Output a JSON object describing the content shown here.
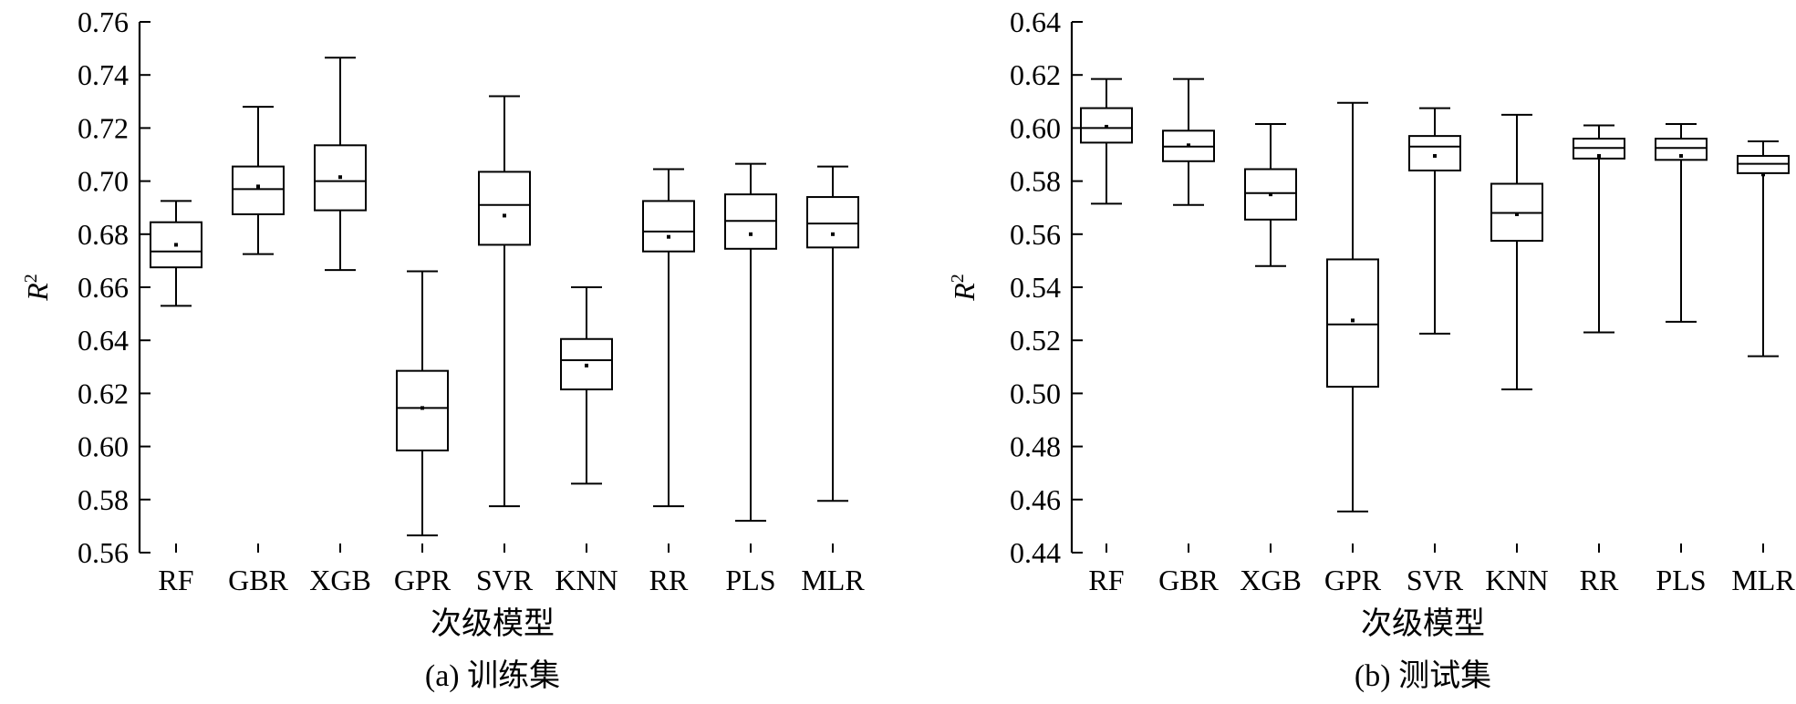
{
  "chart_data": [
    {
      "type": "box",
      "caption": "(a) 训练集",
      "xlabel": "次级模型",
      "ylabel": "R",
      "ylabel_superscript": "2",
      "ylim": [
        0.56,
        0.76
      ],
      "yticks": [
        "0.56",
        "0.58",
        "0.60",
        "0.62",
        "0.64",
        "0.66",
        "0.68",
        "0.70",
        "0.72",
        "0.74",
        "0.76"
      ],
      "categories": [
        "RF",
        "GBR",
        "XGB",
        "GPR",
        "SVR",
        "KNN",
        "RR",
        "PLS",
        "MLR"
      ],
      "boxes": [
        {
          "min": 0.653,
          "q1": 0.6675,
          "median": 0.6735,
          "mean": 0.676,
          "q3": 0.6845,
          "max": 0.6925
        },
        {
          "min": 0.6725,
          "q1": 0.6875,
          "median": 0.697,
          "mean": 0.698,
          "q3": 0.7055,
          "max": 0.728
        },
        {
          "min": 0.6665,
          "q1": 0.689,
          "median": 0.7,
          "mean": 0.7015,
          "q3": 0.7135,
          "max": 0.7465
        },
        {
          "min": 0.5665,
          "q1": 0.5985,
          "median": 0.6145,
          "mean": 0.6145,
          "q3": 0.6285,
          "max": 0.666
        },
        {
          "min": 0.5775,
          "q1": 0.676,
          "median": 0.691,
          "mean": 0.687,
          "q3": 0.7035,
          "max": 0.732
        },
        {
          "min": 0.586,
          "q1": 0.6215,
          "median": 0.6325,
          "mean": 0.6305,
          "q3": 0.6405,
          "max": 0.66
        },
        {
          "min": 0.5775,
          "q1": 0.6735,
          "median": 0.681,
          "mean": 0.679,
          "q3": 0.6925,
          "max": 0.7045
        },
        {
          "min": 0.572,
          "q1": 0.6745,
          "median": 0.685,
          "mean": 0.68,
          "q3": 0.695,
          "max": 0.7065
        },
        {
          "min": 0.5795,
          "q1": 0.675,
          "median": 0.684,
          "mean": 0.68,
          "q3": 0.694,
          "max": 0.7055
        }
      ]
    },
    {
      "type": "box",
      "caption": "(b) 测试集",
      "xlabel": "次级模型",
      "ylabel": "R",
      "ylabel_superscript": "2",
      "ylim": [
        0.44,
        0.64
      ],
      "yticks": [
        "0.44",
        "0.46",
        "0.48",
        "0.50",
        "0.52",
        "0.54",
        "0.56",
        "0.58",
        "0.60",
        "0.62",
        "0.64"
      ],
      "categories": [
        "RF",
        "GBR",
        "XGB",
        "GPR",
        "SVR",
        "KNN",
        "RR",
        "PLS",
        "MLR"
      ],
      "boxes": [
        {
          "min": 0.5715,
          "q1": 0.5945,
          "median": 0.6,
          "mean": 0.6005,
          "q3": 0.6075,
          "max": 0.6185
        },
        {
          "min": 0.571,
          "q1": 0.5875,
          "median": 0.593,
          "mean": 0.5935,
          "q3": 0.599,
          "max": 0.6185
        },
        {
          "min": 0.548,
          "q1": 0.5655,
          "median": 0.5755,
          "mean": 0.575,
          "q3": 0.5845,
          "max": 0.6015
        },
        {
          "min": 0.4555,
          "q1": 0.5025,
          "median": 0.526,
          "mean": 0.5275,
          "q3": 0.5505,
          "max": 0.6095
        },
        {
          "min": 0.5225,
          "q1": 0.584,
          "median": 0.593,
          "mean": 0.5895,
          "q3": 0.597,
          "max": 0.6075
        },
        {
          "min": 0.5015,
          "q1": 0.5575,
          "median": 0.568,
          "mean": 0.5675,
          "q3": 0.579,
          "max": 0.605
        },
        {
          "min": 0.523,
          "q1": 0.5885,
          "median": 0.5925,
          "mean": 0.5895,
          "q3": 0.596,
          "max": 0.601
        },
        {
          "min": 0.527,
          "q1": 0.588,
          "median": 0.5925,
          "mean": 0.5895,
          "q3": 0.596,
          "max": 0.6015
        },
        {
          "min": 0.514,
          "q1": 0.583,
          "median": 0.5865,
          "mean": 0.5825,
          "q3": 0.5895,
          "max": 0.595
        }
      ]
    }
  ]
}
